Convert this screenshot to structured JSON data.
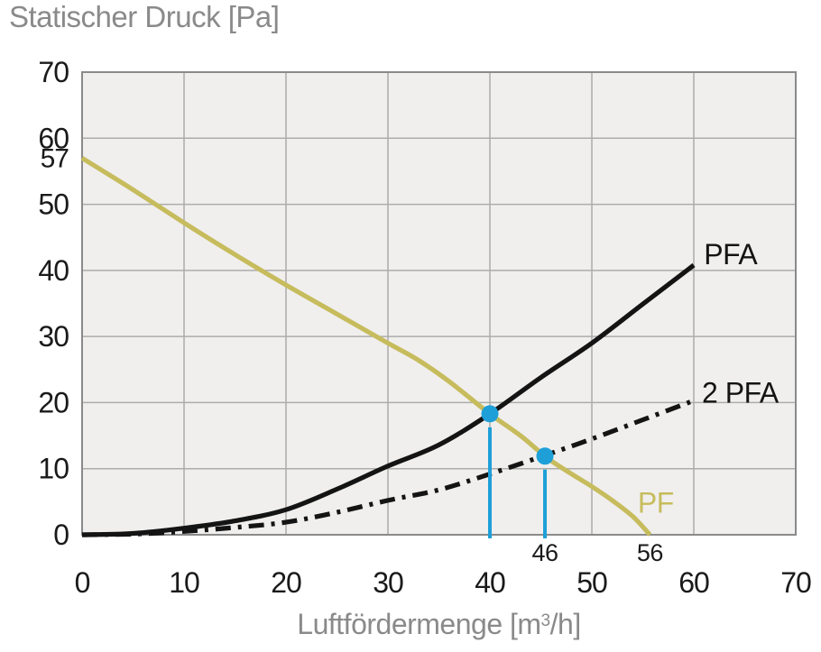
{
  "chart_data": {
    "type": "line",
    "title": "Statischer Druck [Pa]",
    "xlabel": "Luftfördermenge [m³/h]",
    "xlabel_parts": {
      "pre": "Luftfördermenge [m",
      "sup": "3",
      "post": "/h]"
    },
    "xlim": [
      0,
      70
    ],
    "ylim": [
      0,
      70
    ],
    "xticks": [
      0,
      10,
      20,
      30,
      40,
      50,
      60,
      70
    ],
    "yticks": [
      0,
      10,
      20,
      30,
      40,
      50,
      60,
      70
    ],
    "extra_y_label": {
      "value": 57,
      "text": "57"
    },
    "grid": true,
    "legend_position": "inline-labels",
    "colors": {
      "plot_bg": "#f0efee",
      "grid": "#acacaa",
      "border": "#8a8a8a",
      "text": "#1a1a1a",
      "muted_text": "#8a8a8a",
      "accent_blue": "#1e9fd8",
      "curve_black": "#141414",
      "curve_olive": "#c7bc5d"
    },
    "series": [
      {
        "name": "PF",
        "label": "PF",
        "color": "#c7bc5d",
        "style": "solid",
        "label_pos": {
          "x": 54.5,
          "y": 5.0
        },
        "points": [
          [
            0,
            57
          ],
          [
            5,
            52.2
          ],
          [
            10,
            47.2
          ],
          [
            15,
            42.4
          ],
          [
            20,
            37.8
          ],
          [
            25,
            33.4
          ],
          [
            30,
            29
          ],
          [
            33,
            26.4
          ],
          [
            36,
            23.2
          ],
          [
            40,
            18.3
          ],
          [
            43,
            15
          ],
          [
            46,
            11.2
          ],
          [
            50,
            7.3
          ],
          [
            52,
            5.2
          ],
          [
            54,
            2.8
          ],
          [
            55.7,
            0
          ]
        ]
      },
      {
        "name": "PFA",
        "label": "PFA",
        "color": "#141414",
        "style": "solid",
        "label_pos": {
          "x": 61,
          "y": 42.6
        },
        "points": [
          [
            0,
            0
          ],
          [
            5,
            0.2
          ],
          [
            10,
            1
          ],
          [
            15,
            2.1
          ],
          [
            20,
            3.8
          ],
          [
            25,
            6.9
          ],
          [
            30,
            10.4
          ],
          [
            35,
            13.6
          ],
          [
            40,
            18.3
          ],
          [
            45,
            23.8
          ],
          [
            50,
            29
          ],
          [
            55,
            34.9
          ],
          [
            60,
            40.8
          ]
        ]
      },
      {
        "name": "2 PFA",
        "label": "2 PFA",
        "color": "#141414",
        "style": "dashdot",
        "label_pos": {
          "x": 60.8,
          "y": 21.6
        },
        "points": [
          [
            0,
            0
          ],
          [
            5,
            0.1
          ],
          [
            10,
            0.5
          ],
          [
            15,
            1.1
          ],
          [
            20,
            1.9
          ],
          [
            25,
            3.4
          ],
          [
            30,
            5.2
          ],
          [
            35,
            6.8
          ],
          [
            40,
            9.2
          ],
          [
            45,
            11.8
          ],
          [
            50,
            14.5
          ],
          [
            55,
            17.4
          ],
          [
            60,
            20.3
          ]
        ]
      }
    ],
    "operating_points": [
      {
        "flow": 40,
        "pressure": 18.3,
        "label": ""
      },
      {
        "flow": 45.4,
        "pressure": 11.9,
        "label": "46"
      }
    ],
    "axis_annotations": [
      {
        "x": 55.7,
        "label": "56"
      }
    ]
  }
}
